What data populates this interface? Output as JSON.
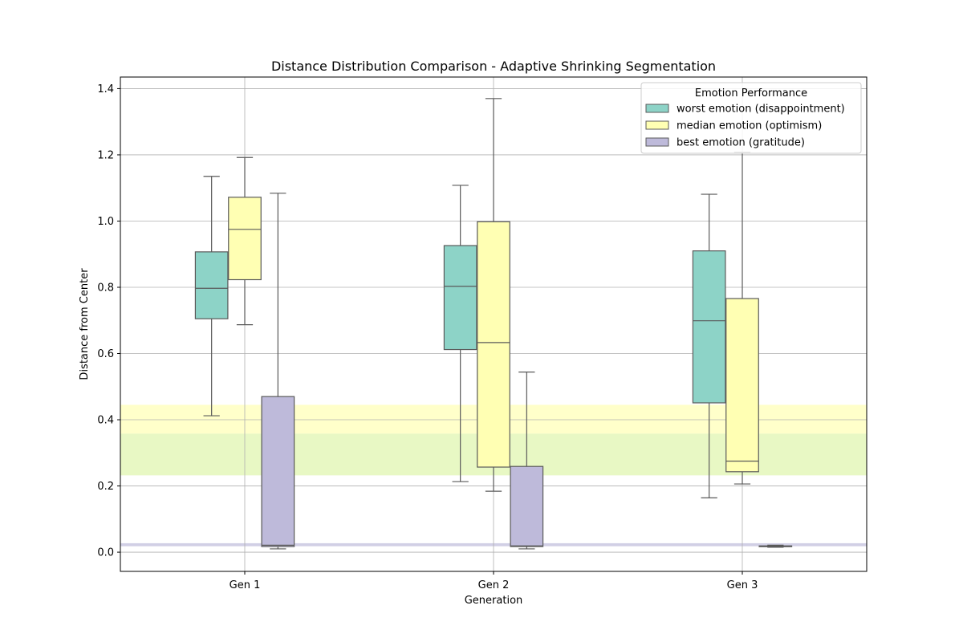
{
  "chart_data": {
    "type": "box",
    "title": "Distance Distribution Comparison - Adaptive Shrinking Segmentation",
    "xlabel": "Generation",
    "ylabel": "Distance from Center",
    "categories": [
      "Gen 1",
      "Gen 2",
      "Gen 3"
    ],
    "ylim": [
      -0.058,
      1.435
    ],
    "yticks": [
      0.0,
      0.2,
      0.4,
      0.6,
      0.8,
      1.0,
      1.2,
      1.4
    ],
    "ytick_labels": [
      "0.0",
      "0.2",
      "0.4",
      "0.6",
      "0.8",
      "1.0",
      "1.2",
      "1.4"
    ],
    "grid": true,
    "legend": {
      "title": "Emotion Performance",
      "placement": "top-right"
    },
    "bands": [
      {
        "y0": 0.358,
        "y1": 0.445,
        "color": "#ffffb3",
        "opacity": 0.7
      },
      {
        "y0": 0.232,
        "y1": 0.358,
        "color": "#e0f5b0",
        "opacity": 0.75
      },
      {
        "y0": 0.018,
        "y1": 0.027,
        "color": "#bebada",
        "opacity": 0.7
      }
    ],
    "series": [
      {
        "name": "worst emotion (disappointment)",
        "color": "#8dd3c7",
        "boxes": [
          {
            "whislo": 0.412,
            "q1": 0.705,
            "med": 0.797,
            "q3": 0.907,
            "whishi": 1.135
          },
          {
            "whislo": 0.213,
            "q1": 0.612,
            "med": 0.803,
            "q3": 0.926,
            "whishi": 1.108
          },
          {
            "whislo": 0.164,
            "q1": 0.451,
            "med": 0.699,
            "q3": 0.91,
            "whishi": 1.081
          }
        ]
      },
      {
        "name": "median emotion (optimism)",
        "color": "#ffffb3",
        "boxes": [
          {
            "whislo": 0.687,
            "q1": 0.823,
            "med": 0.975,
            "q3": 1.072,
            "whishi": 1.192
          },
          {
            "whislo": 0.184,
            "q1": 0.257,
            "med": 0.633,
            "q3": 0.998,
            "whishi": 1.37
          },
          {
            "whislo": 0.206,
            "q1": 0.243,
            "med": 0.275,
            "q3": 0.766,
            "whishi": 1.208
          }
        ]
      },
      {
        "name": "best emotion (gratitude)",
        "color": "#bebada",
        "boxes": [
          {
            "whislo": 0.01,
            "q1": 0.017,
            "med": 0.021,
            "q3": 0.47,
            "whishi": 1.084
          },
          {
            "whislo": 0.01,
            "q1": 0.017,
            "med": 0.019,
            "q3": 0.259,
            "whishi": 0.544
          },
          {
            "whislo": 0.015,
            "q1": 0.017,
            "med": 0.018,
            "q3": 0.019,
            "whishi": 0.021
          }
        ]
      }
    ]
  }
}
